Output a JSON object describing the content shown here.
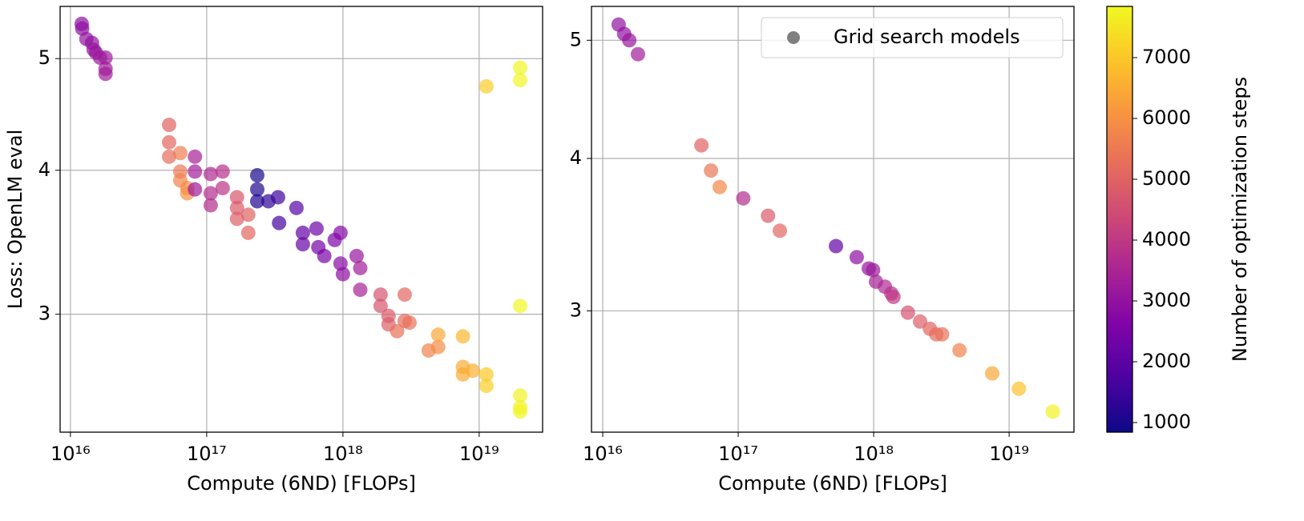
{
  "chart_data": [
    {
      "type": "scatter",
      "xlabel": "Compute (6ND) [FLOPs]",
      "ylabel": "Loss: OpenLM eval",
      "xscale": "log",
      "yscale": "log",
      "grid": true,
      "xlim": [
        8400000000000000.0,
        2.92e+19
      ],
      "ylim": [
        2.37,
        5.55
      ],
      "xticks": [
        {
          "value": 1e+16,
          "label": "10¹⁶"
        },
        {
          "value": 1e+17,
          "label": "10¹⁷"
        },
        {
          "value": 1e+18,
          "label": "10¹⁸"
        },
        {
          "value": 1e+19,
          "label": "10¹⁹"
        }
      ],
      "yticks": [
        3,
        4,
        5
      ],
      "series": [
        {
          "x": [
            1.21e+16,
            1.22e+16,
            1.31e+16,
            1.44e+16,
            1.48e+16,
            1.54e+16,
            1.65e+16,
            1.81e+16,
            1.81e+16,
            1.81e+16,
            1.13e+19,
            2e+19,
            2e+19,
            2e+19,
            2e+19,
            2e+19,
            2e+19,
            5.3e+16,
            5.3e+16,
            5.3e+16,
            6.4e+16,
            6.4e+16,
            6.4e+16,
            7.2e+16,
            7.2e+16,
            8.2e+16,
            8.2e+16,
            8.2e+16,
            1.07e+17,
            1.07e+17,
            1.07e+17,
            1.31e+17,
            1.31e+17,
            1.67e+17,
            1.67e+17,
            1.67e+17,
            2.02e+17,
            2.02e+17,
            2.35e+17,
            2.35e+17,
            2.35e+17,
            2.84e+17,
            3.34e+17,
            3.4e+17,
            4.56e+17,
            5.08e+17,
            5.08e+17,
            6.4e+17,
            6.6e+17,
            7.3e+17,
            8.7e+17,
            9.6e+17,
            9.6e+17,
            1e+18,
            1.26e+18,
            1.34e+18,
            1.34e+18,
            1.89e+18,
            1.89e+18,
            2.16e+18,
            2.16e+18,
            2.84e+18,
            2.84e+18,
            2.5e+18,
            3.08e+18,
            4.26e+18,
            5e+18,
            5e+18,
            7.6e+18,
            7.6e+18,
            7.6e+18,
            9e+18,
            1.13e+19,
            1.13e+19
          ],
          "values": [
            5.36,
            5.31,
            5.2,
            5.16,
            5.09,
            5.06,
            5.01,
            5.01,
            4.9,
            4.85,
            4.73,
            4.91,
            4.79,
            3.05,
            2.55,
            2.49,
            2.47,
            4.38,
            4.23,
            4.11,
            4.14,
            3.99,
            3.92,
            3.86,
            3.82,
            4.11,
            3.99,
            3.85,
            3.97,
            3.82,
            3.73,
            3.99,
            3.86,
            3.79,
            3.71,
            3.63,
            3.66,
            3.53,
            3.96,
            3.85,
            3.76,
            3.76,
            3.79,
            3.6,
            3.71,
            3.53,
            3.45,
            3.56,
            3.43,
            3.37,
            3.48,
            3.53,
            3.32,
            3.25,
            3.37,
            3.29,
            3.15,
            3.12,
            3.05,
            2.99,
            2.94,
            3.12,
            2.96,
            2.9,
            2.95,
            2.79,
            2.81,
            2.88,
            2.87,
            2.7,
            2.66,
            2.68,
            2.66,
            2.6
          ],
          "steps": [
            2900,
            2900,
            3000,
            3000,
            3100,
            3100,
            3200,
            3200,
            3300,
            3300,
            7100,
            7800,
            7800,
            7800,
            7700,
            7700,
            7800,
            5000,
            5100,
            5200,
            5600,
            5500,
            5700,
            5900,
            6000,
            3400,
            3300,
            3200,
            3600,
            3700,
            3700,
            3800,
            3900,
            4700,
            4800,
            4900,
            5000,
            5100,
            1000,
            1100,
            1100,
            1300,
            1500,
            1600,
            1900,
            2100,
            2200,
            2300,
            2400,
            2500,
            2600,
            2700,
            2800,
            2900,
            3100,
            3300,
            3400,
            4600,
            4700,
            4800,
            4900,
            5100,
            5200,
            5300,
            5300,
            5700,
            5900,
            6400,
            6700,
            6500,
            6500,
            6600,
            7000,
            7100
          ]
        }
      ]
    },
    {
      "type": "scatter",
      "xlabel": "Compute (6ND) [FLOPs]",
      "xscale": "log",
      "yscale": "log",
      "grid": true,
      "legend": "upper right",
      "xlim": [
        8260000000000000.0,
        3.01e+19
      ],
      "ylim": [
        2.386,
        5.33
      ],
      "xticks": [
        {
          "value": 1e+16,
          "label": "10¹⁶"
        },
        {
          "value": 1e+17,
          "label": "10¹⁷"
        },
        {
          "value": 1e+18,
          "label": "10¹⁸"
        },
        {
          "value": 1e+19,
          "label": "10¹⁹"
        }
      ],
      "yticks": [
        3,
        4,
        5
      ],
      "series": [
        {
          "name": "Grid search models",
          "color": "#808080",
          "x": [
            1.31e+16,
            1.44e+16,
            1.57e+16,
            1.82e+16,
            5.35e+16,
            6.3e+16,
            7.3e+16,
            1.09e+17,
            1.66e+17,
            2.03e+17,
            5.27e+17,
            7.5e+17,
            9.2e+17,
            9.9e+17,
            1.04e+18,
            1.21e+18,
            1.35e+18,
            1.4e+18,
            1.79e+18,
            2.2e+18,
            2.6e+18,
            2.9e+18,
            3.2e+18,
            4.3e+18,
            7.5e+18,
            1.18e+19,
            2.1e+19
          ],
          "values": [
            5.15,
            5.06,
            5.0,
            4.87,
            4.1,
            3.91,
            3.79,
            3.71,
            3.59,
            3.49,
            3.39,
            3.32,
            3.25,
            3.24,
            3.17,
            3.14,
            3.1,
            3.08,
            2.99,
            2.94,
            2.9,
            2.87,
            2.87,
            2.785,
            2.666,
            2.59,
            2.48
          ],
          "steps": [
            3000,
            3000,
            3100,
            3300,
            5000,
            5400,
            5800,
            3700,
            4800,
            5100,
            2100,
            2900,
            3100,
            3200,
            3400,
            3600,
            3800,
            4000,
            4600,
            4900,
            5100,
            5200,
            5300,
            5700,
            6400,
            6900,
            7700
          ]
        }
      ]
    }
  ],
  "colorbar": {
    "label": "Number of optimization steps",
    "colormap": "plasma",
    "lim": [
      842,
      7842
    ],
    "ticks": [
      1000,
      2000,
      3000,
      4000,
      5000,
      6000,
      7000
    ]
  }
}
